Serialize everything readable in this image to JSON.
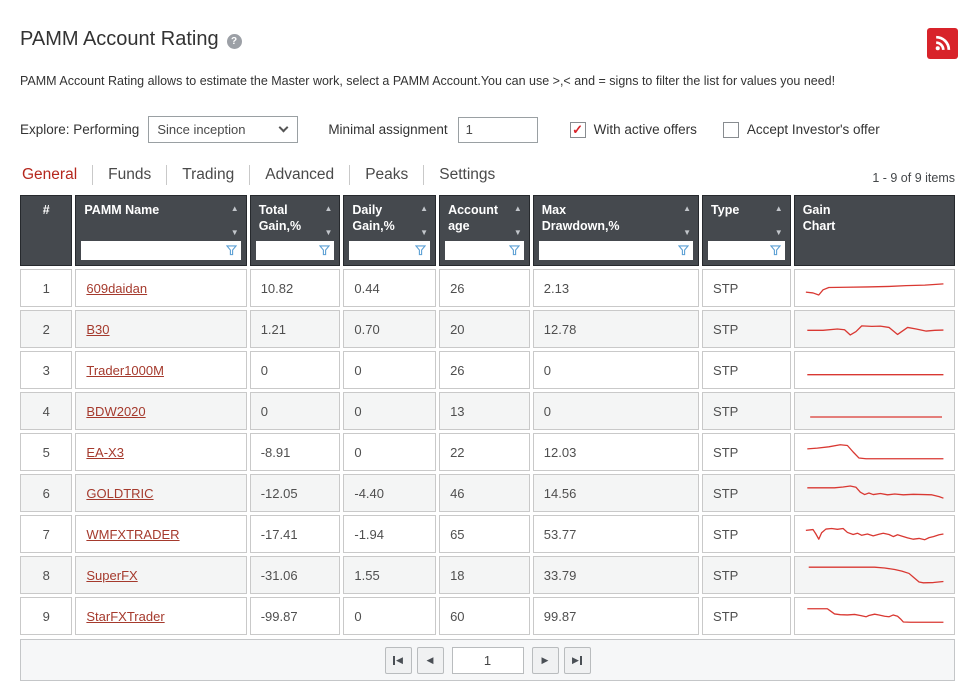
{
  "page": {
    "title": "PAMM Account Rating",
    "description": "PAMM Account Rating allows to estimate the Master work, select a PAMM Account.You can use >,< and = signs to filter the list for values you need!"
  },
  "controls": {
    "explore_label": "Explore: Performing",
    "period_value": "Since inception",
    "minimal_assignment_label": "Minimal assignment",
    "minimal_assignment_value": "1",
    "with_active_offers_label": "With active offers",
    "with_active_offers_checked": true,
    "accept_investor_label": "Accept Investor's offer",
    "accept_investor_checked": false
  },
  "tabs": {
    "items": [
      {
        "label": "General",
        "active": true
      },
      {
        "label": "Funds",
        "active": false
      },
      {
        "label": "Trading",
        "active": false
      },
      {
        "label": "Advanced",
        "active": false
      },
      {
        "label": "Peaks",
        "active": false
      },
      {
        "label": "Settings",
        "active": false
      }
    ],
    "items_count": "1 - 9 of 9 items"
  },
  "table": {
    "columns": [
      {
        "key": "num",
        "label": "#",
        "sortable": false,
        "filterable": false
      },
      {
        "key": "pamm_name",
        "label": "PAMM Name",
        "sortable": true,
        "filterable": true
      },
      {
        "key": "total_gain",
        "label": "Total\nGain,%",
        "sortable": true,
        "filterable": true
      },
      {
        "key": "daily_gain",
        "label": "Daily\nGain,%",
        "sortable": true,
        "filterable": true
      },
      {
        "key": "account_age",
        "label": "Account\nage",
        "sortable": true,
        "filterable": true
      },
      {
        "key": "max_drawdown",
        "label": "Max\nDrawdown,%",
        "sortable": true,
        "filterable": true
      },
      {
        "key": "type",
        "label": "Type",
        "sortable": true,
        "filterable": true
      },
      {
        "key": "gain_chart",
        "label": "Gain\nChart",
        "sortable": false,
        "filterable": false
      }
    ],
    "rows": [
      {
        "num": "1",
        "name": "609daidan",
        "total_gain": "10.82",
        "daily_gain": "0.44",
        "account_age": "26",
        "max_drawdown": "2.13",
        "type": "STP",
        "spark": [
          [
            2,
            66
          ],
          [
            7,
            69
          ],
          [
            11,
            77
          ],
          [
            14,
            57
          ],
          [
            18,
            48
          ],
          [
            30,
            47
          ],
          [
            45,
            46
          ],
          [
            60,
            44
          ],
          [
            72,
            41
          ],
          [
            85,
            39
          ],
          [
            98,
            34
          ]
        ]
      },
      {
        "num": "2",
        "name": "B30",
        "total_gain": "1.21",
        "daily_gain": "0.70",
        "account_age": "20",
        "max_drawdown": "12.78",
        "type": "STP",
        "spark": [
          [
            3,
            55
          ],
          [
            14,
            55
          ],
          [
            24,
            50
          ],
          [
            29,
            53
          ],
          [
            33,
            73
          ],
          [
            37,
            60
          ],
          [
            41,
            38
          ],
          [
            48,
            40
          ],
          [
            54,
            39
          ],
          [
            60,
            44
          ],
          [
            66,
            71
          ],
          [
            73,
            44
          ],
          [
            79,
            50
          ],
          [
            86,
            58
          ],
          [
            92,
            55
          ],
          [
            98,
            54
          ]
        ]
      },
      {
        "num": "3",
        "name": "Trader1000M",
        "total_gain": "0",
        "daily_gain": "0",
        "account_age": "26",
        "max_drawdown": "0",
        "type": "STP",
        "spark": [
          [
            3,
            68
          ],
          [
            98,
            68
          ]
        ]
      },
      {
        "num": "4",
        "name": "BDW2020",
        "total_gain": "0",
        "daily_gain": "0",
        "account_age": "13",
        "max_drawdown": "0",
        "type": "STP",
        "spark": [
          [
            5,
            73
          ],
          [
            97,
            73
          ]
        ]
      },
      {
        "num": "5",
        "name": "EA-X3",
        "total_gain": "-8.91",
        "daily_gain": "0",
        "account_age": "22",
        "max_drawdown": "12.03",
        "type": "STP",
        "spark": [
          [
            3,
            38
          ],
          [
            10,
            35
          ],
          [
            18,
            30
          ],
          [
            26,
            22
          ],
          [
            31,
            25
          ],
          [
            35,
            50
          ],
          [
            39,
            73
          ],
          [
            44,
            76
          ],
          [
            98,
            76
          ]
        ]
      },
      {
        "num": "6",
        "name": "GOLDTRIC",
        "total_gain": "-12.05",
        "daily_gain": "-4.40",
        "account_age": "46",
        "max_drawdown": "14.56",
        "type": "STP",
        "spark": [
          [
            3,
            30
          ],
          [
            22,
            30
          ],
          [
            28,
            27
          ],
          [
            33,
            23
          ],
          [
            37,
            28
          ],
          [
            40,
            47
          ],
          [
            43,
            56
          ],
          [
            46,
            50
          ],
          [
            49,
            56
          ],
          [
            54,
            52
          ],
          [
            59,
            57
          ],
          [
            64,
            54
          ],
          [
            70,
            57
          ],
          [
            77,
            55
          ],
          [
            84,
            56
          ],
          [
            90,
            57
          ],
          [
            95,
            64
          ],
          [
            98,
            70
          ]
        ]
      },
      {
        "num": "7",
        "name": "WMFXTRADER",
        "total_gain": "-17.41",
        "daily_gain": "-1.94",
        "account_age": "65",
        "max_drawdown": "53.77",
        "type": "STP",
        "spark": [
          [
            2,
            36
          ],
          [
            7,
            33
          ],
          [
            9,
            50
          ],
          [
            11,
            70
          ],
          [
            13,
            45
          ],
          [
            16,
            31
          ],
          [
            20,
            29
          ],
          [
            24,
            32
          ],
          [
            28,
            29
          ],
          [
            31,
            44
          ],
          [
            35,
            52
          ],
          [
            38,
            47
          ],
          [
            41,
            55
          ],
          [
            45,
            50
          ],
          [
            49,
            57
          ],
          [
            53,
            51
          ],
          [
            56,
            47
          ],
          [
            60,
            52
          ],
          [
            63,
            60
          ],
          [
            66,
            53
          ],
          [
            69,
            58
          ],
          [
            73,
            65
          ],
          [
            77,
            70
          ],
          [
            81,
            67
          ],
          [
            85,
            72
          ],
          [
            88,
            64
          ],
          [
            91,
            60
          ],
          [
            95,
            53
          ],
          [
            98,
            50
          ]
        ]
      },
      {
        "num": "8",
        "name": "SuperFX",
        "total_gain": "-31.06",
        "daily_gain": "1.55",
        "account_age": "18",
        "max_drawdown": "33.79",
        "type": "STP",
        "spark": [
          [
            4,
            20
          ],
          [
            50,
            20
          ],
          [
            57,
            23
          ],
          [
            64,
            29
          ],
          [
            69,
            35
          ],
          [
            74,
            44
          ],
          [
            77,
            58
          ],
          [
            81,
            77
          ],
          [
            84,
            80
          ],
          [
            91,
            79
          ],
          [
            98,
            75
          ]
        ]
      },
      {
        "num": "9",
        "name": "StarFXTrader",
        "total_gain": "-99.87",
        "daily_gain": "0",
        "account_age": "60",
        "max_drawdown": "99.87",
        "type": "STP",
        "spark": [
          [
            3,
            22
          ],
          [
            17,
            22
          ],
          [
            19,
            30
          ],
          [
            22,
            42
          ],
          [
            26,
            45
          ],
          [
            31,
            46
          ],
          [
            36,
            44
          ],
          [
            40,
            48
          ],
          [
            44,
            53
          ],
          [
            46,
            48
          ],
          [
            50,
            43
          ],
          [
            53,
            46
          ],
          [
            57,
            51
          ],
          [
            60,
            53
          ],
          [
            63,
            46
          ],
          [
            66,
            51
          ],
          [
            68,
            61
          ],
          [
            70,
            73
          ],
          [
            75,
            74
          ],
          [
            98,
            74
          ]
        ]
      }
    ]
  },
  "pagination": {
    "page": "1"
  },
  "icons": {
    "help": "?",
    "check": "✓",
    "sort_asc": "▲",
    "sort_desc": "▼",
    "prev": "◀",
    "next": "▶"
  },
  "colors": {
    "header_bg": "#45494e",
    "accent_red": "#b5271d",
    "link_red": "#a53a2d",
    "spark_red": "#d93832",
    "rss_red": "#d8232a",
    "funnel_blue": "#5b9fd4"
  }
}
